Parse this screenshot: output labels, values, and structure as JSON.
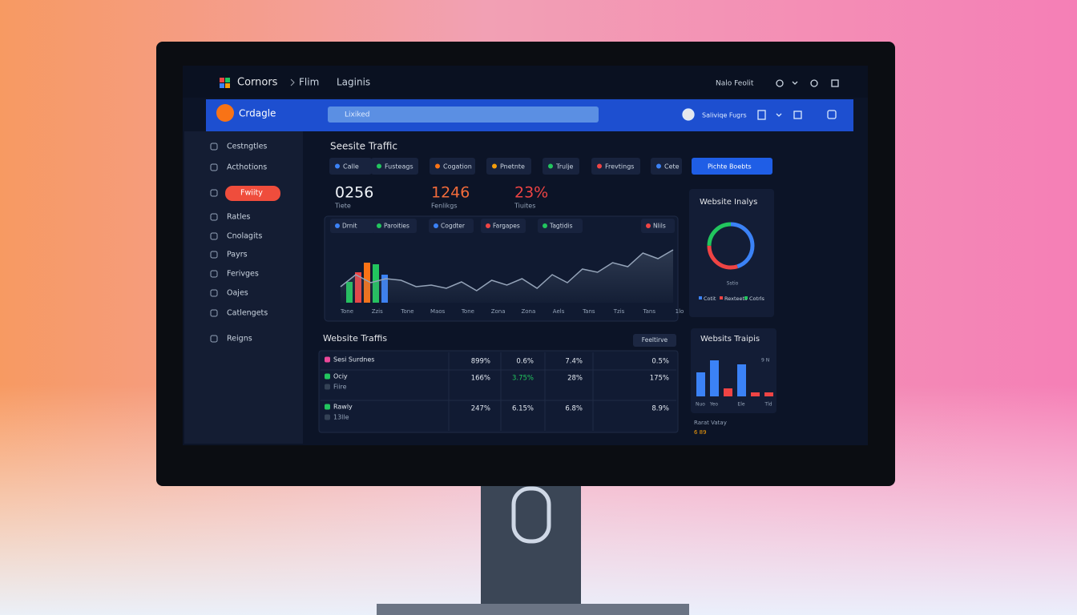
{
  "top_bar": {
    "brand": "Cornors",
    "crumbs": [
      "Flim",
      "Laginis"
    ],
    "user": "Nalo Feolit"
  },
  "header": {
    "app": "Crdagle",
    "search": "Lixiked",
    "account": "Saliviqe Fugrs"
  },
  "sidebar": {
    "items": [
      "Cestngtles",
      "Acthotions",
      "Fwiity",
      "Ratles",
      "Cnolagits",
      "Payrs",
      "Ferivges",
      "Oajes",
      "Catlengets",
      "Reigns"
    ]
  },
  "main": {
    "title": "Seesite Traffic",
    "filters": [
      "Calle",
      "Fusteags",
      "Cogation",
      "Pnetnte",
      "Trulje",
      "Frevtings",
      "Cete"
    ],
    "cta": "Pichte Boebts",
    "stats": [
      {
        "value": "0256",
        "label": "Tiete"
      },
      {
        "value": "1246",
        "label": "Fenlikgs"
      },
      {
        "value": "23%",
        "label": "Tiuites"
      }
    ],
    "chart_legend": [
      "Drnit",
      "Paroities",
      "Cogdter",
      "Fargapes",
      "Tagtidis",
      "Nlils"
    ]
  },
  "chart_data": [
    {
      "type": "bar",
      "categories": [
        null,
        null,
        null,
        null,
        null
      ],
      "values": [
        26,
        38,
        50,
        48,
        35
      ],
      "colors": [
        "#22c55e",
        "#ef4444",
        "#f97316",
        "#22c55e",
        "#3b82f6"
      ]
    },
    {
      "type": "line",
      "color": "#94a3b8",
      "categories": [
        "Tone",
        null,
        "Zzis",
        null,
        "Tone",
        null,
        "Maos",
        null,
        "Tone",
        null,
        "Zona",
        null,
        "Zona",
        null,
        "Aels",
        null,
        "Tans",
        null,
        "Tzis",
        null,
        "Tans",
        null,
        "1lo"
      ],
      "values": [
        20,
        35,
        25,
        30,
        28,
        20,
        22,
        18,
        26,
        15,
        28,
        22,
        30,
        18,
        35,
        25,
        42,
        38,
        50,
        45,
        62,
        55,
        66
      ]
    },
    {
      "type": "pie",
      "title": "Website Inalys",
      "center_label": "Sstio",
      "categories": [
        "Cotit",
        "Rexteets",
        "Cotrls"
      ],
      "values": [
        45,
        30,
        25
      ],
      "colors": [
        "#3b82f6",
        "#ef4444",
        "#22c55e"
      ]
    },
    {
      "type": "bar",
      "title": "Websits Traipis",
      "annotation": "9 N",
      "categories": [
        "Nuo",
        "Yeo",
        null,
        "Ele",
        null,
        "Tld"
      ],
      "values": [
        6,
        9,
        2,
        8,
        1,
        1
      ],
      "colors": [
        "#3b82f6",
        "#3b82f6",
        "#ef4444",
        "#3b82f6",
        "#ef4444",
        "#ef4444"
      ],
      "footer": [
        "Rarat Vatay",
        "6 89"
      ]
    }
  ],
  "table": {
    "title": "Website Traffis",
    "button": "Feeltirve",
    "rows": [
      {
        "labels": [
          "Sesi Surdnes"
        ],
        "cells": [
          "899%",
          "0.6%",
          "7.4%",
          "0.5%"
        ]
      },
      {
        "labels": [
          "Ociy",
          "Fiire"
        ],
        "cells": [
          "166%",
          "3.75%",
          "28%",
          "175%"
        ]
      },
      {
        "labels": [
          "Rawly",
          "13lle"
        ],
        "cells": [
          "247%",
          "6.15%",
          "6.8%",
          "8.9%"
        ]
      }
    ]
  }
}
